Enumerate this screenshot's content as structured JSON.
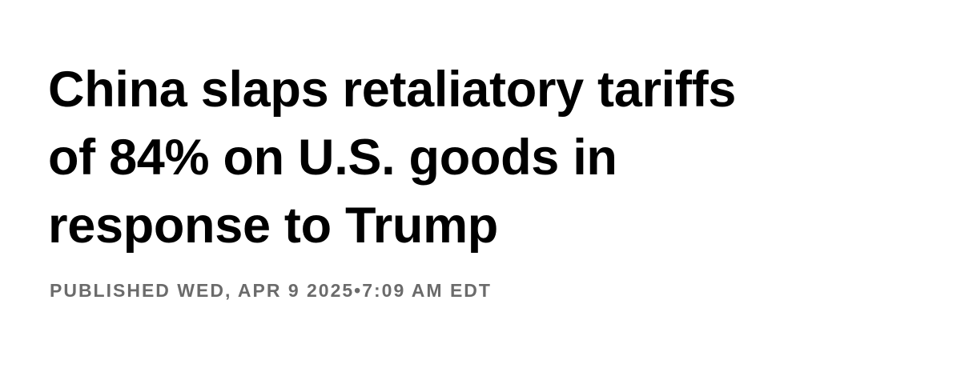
{
  "headline": {
    "lines": [
      "China slaps retaliatory tariffs",
      "of 84% on U.S. goods in",
      "response to Trump"
    ]
  },
  "published": "PUBLISHED WED, APR 9 2025•7:09 AM EDT"
}
